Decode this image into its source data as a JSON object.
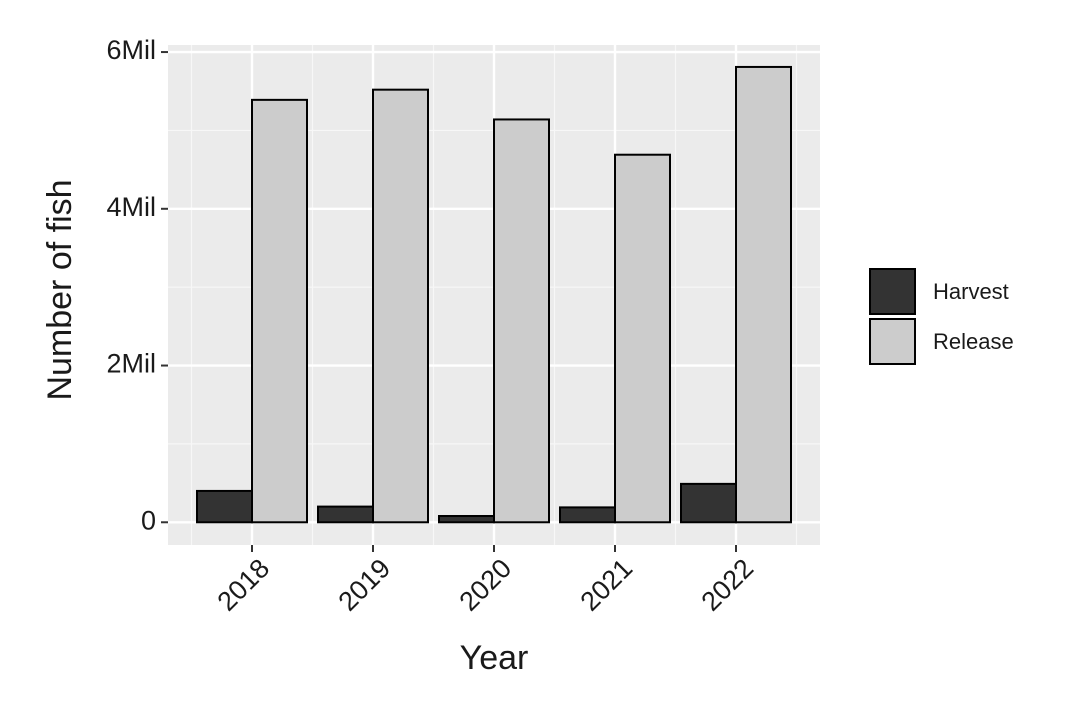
{
  "chart_data": {
    "type": "bar",
    "x_label": "Year",
    "y_label": "Number of fish",
    "categories": [
      "2018",
      "2019",
      "2020",
      "2021",
      "2022"
    ],
    "series": [
      {
        "name": "Harvest",
        "color": "#333333",
        "values": [
          400000,
          200000,
          80000,
          190000,
          490000
        ]
      },
      {
        "name": "Release",
        "color": "#cccccc",
        "values": [
          5390000,
          5520000,
          5140000,
          4690000,
          5810000
        ]
      }
    ],
    "ylim": [
      -290000,
      6090000
    ],
    "yticks": [
      0,
      {
        "value": 2000000,
        "label": "2Mil"
      },
      {
        "value": 4000000,
        "label": "4Mil"
      },
      {
        "value": 6000000,
        "label": "6Mil"
      }
    ],
    "grid": true,
    "legend": "right"
  }
}
